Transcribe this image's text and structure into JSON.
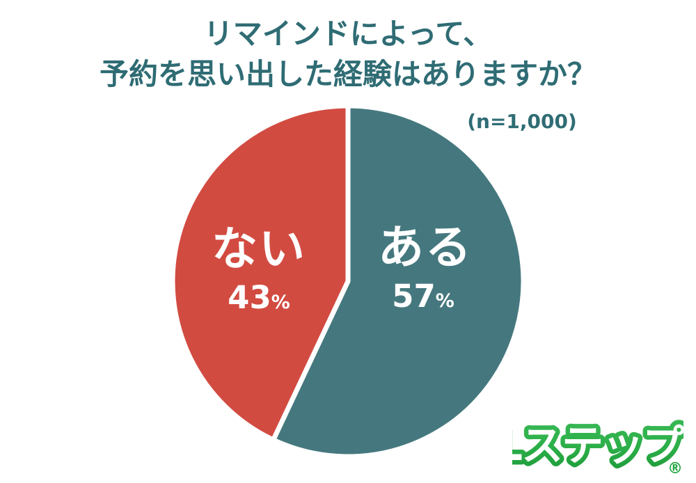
{
  "title": {
    "line1": "リマインドによって、",
    "line2": "予約を思い出した経験はありますか？"
  },
  "sample_size": "(n=1,000)",
  "chart_data": {
    "type": "pie",
    "title": "リマインドによって、予約を思い出した経験はありますか？",
    "sample_size_label": "(n=1,000)",
    "n": 1000,
    "start_angle_deg": 0,
    "direction": "clockwise",
    "divider_color": "#ffffff",
    "slices": [
      {
        "key": "aru",
        "label": "ある",
        "value": 57,
        "percent": "57",
        "unit": "%",
        "color": "#45787e"
      },
      {
        "key": "nai",
        "label": "ない",
        "value": 43,
        "percent": "43",
        "unit": "%",
        "color": "#d24b41"
      }
    ]
  },
  "logo": {
    "text": "Lステップ",
    "registered_mark": "®",
    "color": "#2bae47"
  },
  "colors": {
    "title_text": "#2f6c74",
    "background": "#ffffff",
    "label_text": "#ffffff"
  }
}
